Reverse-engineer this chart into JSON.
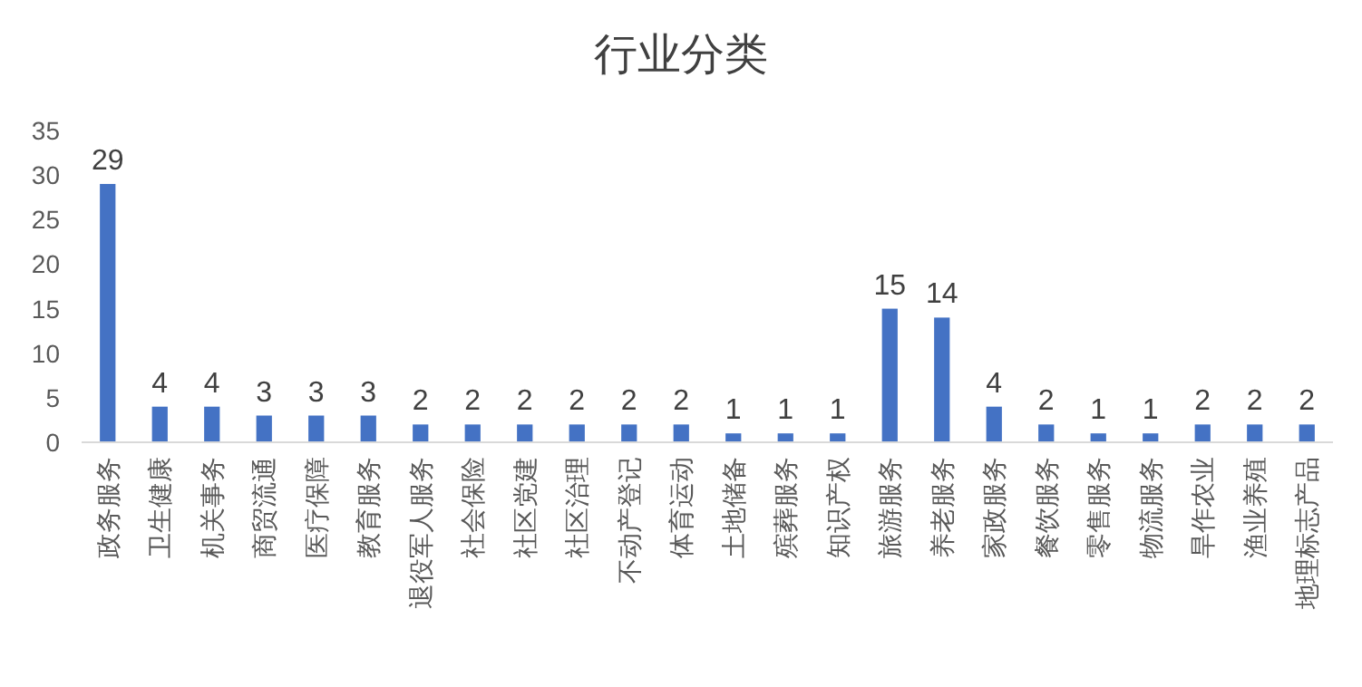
{
  "chart_data": {
    "type": "bar",
    "title": "行业分类",
    "categories": [
      "政务服务",
      "卫生健康",
      "机关事务",
      "商贸流通",
      "医疗保障",
      "教育服务",
      "退役军人服务",
      "社会保险",
      "社区党建",
      "社区治理",
      "不动产登记",
      "体育运动",
      "土地储备",
      "殡葬服务",
      "知识产权",
      "旅游服务",
      "养老服务",
      "家政服务",
      "餐饮服务",
      "零售服务",
      "物流服务",
      "旱作农业",
      "渔业养殖",
      "地理标志产品"
    ],
    "values": [
      29,
      4,
      4,
      3,
      3,
      3,
      2,
      2,
      2,
      2,
      2,
      2,
      1,
      1,
      1,
      15,
      14,
      4,
      2,
      1,
      1,
      2,
      2,
      2
    ],
    "color": "#4472c4",
    "ylim": [
      0,
      35
    ],
    "yticks": [
      0,
      5,
      10,
      15,
      20,
      25,
      30,
      35
    ],
    "grid": false,
    "data_labels": true
  }
}
